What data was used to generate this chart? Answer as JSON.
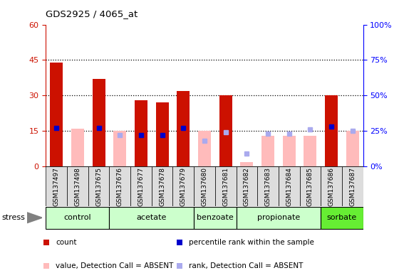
{
  "title": "GDS2925 / 4065_at",
  "samples": [
    "GSM137497",
    "GSM137498",
    "GSM137675",
    "GSM137676",
    "GSM137677",
    "GSM137678",
    "GSM137679",
    "GSM137680",
    "GSM137681",
    "GSM137682",
    "GSM137683",
    "GSM137684",
    "GSM137685",
    "GSM137686",
    "GSM137687"
  ],
  "count_present": [
    44,
    0,
    37,
    0,
    28,
    27,
    32,
    0,
    30,
    0,
    0,
    0,
    0,
    30,
    0
  ],
  "count_absent": [
    0,
    16,
    0,
    15,
    0,
    0,
    0,
    15,
    0,
    2,
    13,
    13,
    13,
    0,
    15
  ],
  "rank_present": [
    27,
    0,
    27,
    0,
    22,
    22,
    27,
    0,
    0,
    0,
    0,
    0,
    0,
    28,
    0
  ],
  "rank_absent": [
    0,
    0,
    0,
    22,
    0,
    0,
    0,
    18,
    24,
    9,
    23,
    23,
    26,
    0,
    25
  ],
  "groups": [
    {
      "label": "control",
      "start": 0,
      "end": 2,
      "color": "#ccffcc"
    },
    {
      "label": "acetate",
      "start": 3,
      "end": 6,
      "color": "#ccffcc"
    },
    {
      "label": "benzoate",
      "start": 7,
      "end": 8,
      "color": "#ccffcc"
    },
    {
      "label": "propionate",
      "start": 9,
      "end": 12,
      "color": "#ccffcc"
    },
    {
      "label": "sorbate",
      "start": 13,
      "end": 14,
      "color": "#66ee33"
    }
  ],
  "ylim_left": [
    0,
    60
  ],
  "yticks_left": [
    0,
    15,
    30,
    45,
    60
  ],
  "yticks_right": [
    0,
    25,
    50,
    75,
    100
  ],
  "ytick_labels_right": [
    "0%",
    "25%",
    "50%",
    "75%",
    "100%"
  ],
  "dotted_lines": [
    15,
    30,
    45
  ],
  "color_count": "#cc1100",
  "color_count_absent": "#ffbbbb",
  "color_rank": "#0000cc",
  "color_rank_absent": "#aaaaee",
  "legend_items": [
    {
      "label": "count",
      "color": "#cc1100"
    },
    {
      "label": "percentile rank within the sample",
      "color": "#0000cc"
    },
    {
      "label": "value, Detection Call = ABSENT",
      "color": "#ffbbbb"
    },
    {
      "label": "rank, Detection Call = ABSENT",
      "color": "#aaaaee"
    }
  ]
}
